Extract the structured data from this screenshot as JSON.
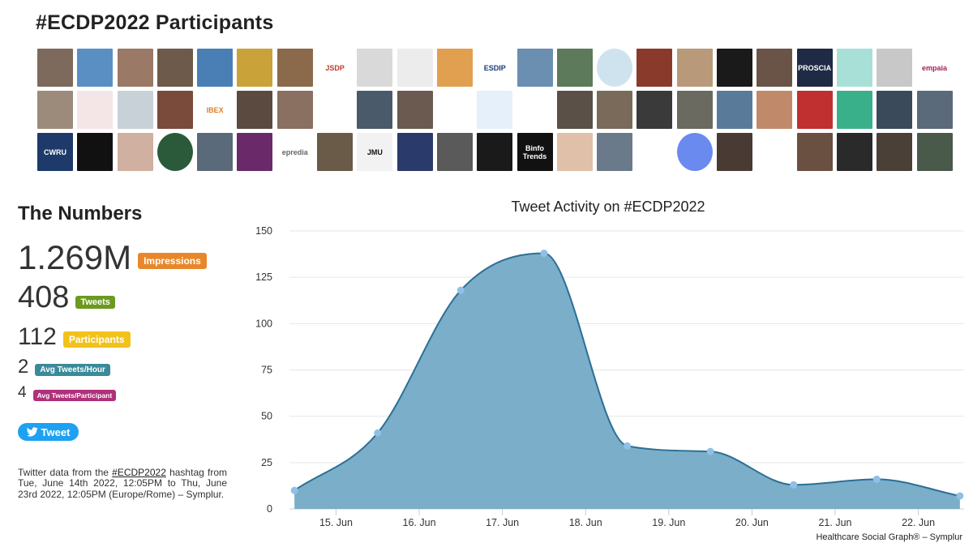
{
  "header": {
    "title": "#ECDP2022 Participants"
  },
  "avatars": [
    {
      "bg": "#7d6a5c"
    },
    {
      "bg": "#5a8fc4"
    },
    {
      "bg": "#9a7a66"
    },
    {
      "bg": "#6e5a4a"
    },
    {
      "bg": "#4a7fb5"
    },
    {
      "bg": "#c9a23a"
    },
    {
      "bg": "#8a6a4a"
    },
    {
      "bg": "#ffffff",
      "text": "JSDP",
      "color": "#c0392b"
    },
    {
      "bg": "#d9d9d9"
    },
    {
      "bg": "#ececec"
    },
    {
      "bg": "#e0a050"
    },
    {
      "bg": "#ffffff",
      "text": "ESDIP",
      "color": "#1d3a7a"
    },
    {
      "bg": "#6a8fb0"
    },
    {
      "bg": "#5d7a5a"
    },
    {
      "bg": "#cfe3ef",
      "circle": true
    },
    {
      "bg": "#8a3a2a"
    },
    {
      "bg": "#b89a7a"
    },
    {
      "bg": "#1a1a1a"
    },
    {
      "bg": "#6a5448"
    },
    {
      "bg": "#1f2a44",
      "text": "PROSCIA",
      "color": "#ffffff"
    },
    {
      "bg": "#a8e0d8"
    },
    {
      "bg": "#c8c8c8"
    },
    {
      "bg": "#ffffff",
      "text": "empaia",
      "color": "#a0205a"
    },
    {
      "bg": "#9c8a7a"
    },
    {
      "bg": "#f4e6e6"
    },
    {
      "bg": "#c8d0d8"
    },
    {
      "bg": "#7a4a3a"
    },
    {
      "bg": "#ffffff",
      "text": "IBEX",
      "color": "#e08020"
    },
    {
      "bg": "#5a4a40"
    },
    {
      "bg": "#8a7060"
    },
    {
      "bg": "#ffffff"
    },
    {
      "bg": "#4a5a6a"
    },
    {
      "bg": "#6a5a50"
    },
    {
      "bg": "#ffffff"
    },
    {
      "bg": "#e6f0fa"
    },
    {
      "bg": "#ffffff"
    },
    {
      "bg": "#5a5048"
    },
    {
      "bg": "#7a6a5a"
    },
    {
      "bg": "#3a3a3a"
    },
    {
      "bg": "#6a6a60"
    },
    {
      "bg": "#5a7a9a"
    },
    {
      "bg": "#c08a6a"
    },
    {
      "bg": "#c03030"
    },
    {
      "bg": "#3ab08a"
    },
    {
      "bg": "#3a4a5a"
    },
    {
      "bg": "#5a6a7a"
    },
    {
      "bg": "#1d3a6a",
      "text": "CWRU",
      "color": "#ffffff"
    },
    {
      "bg": "#111111"
    },
    {
      "bg": "#d0b0a0"
    },
    {
      "bg": "#2a5a3a",
      "circle": true
    },
    {
      "bg": "#5a6a7a"
    },
    {
      "bg": "#6a2a6a"
    },
    {
      "bg": "#ffffff",
      "text": "epredia",
      "color": "#666666"
    },
    {
      "bg": "#6a5a48"
    },
    {
      "bg": "#f2f2f2",
      "text": "JMU",
      "color": "#111111"
    },
    {
      "bg": "#2a3a6a"
    },
    {
      "bg": "#5a5a5a"
    },
    {
      "bg": "#1a1a1a"
    },
    {
      "bg": "#111111",
      "text": "Binfo\nTrends",
      "color": "#ffffff"
    },
    {
      "bg": "#e0c0a8"
    },
    {
      "bg": "#6a7a8a"
    },
    {
      "bg": "#ffffff"
    },
    {
      "bg": "#6a8af0",
      "circle": true
    },
    {
      "bg": "#4a3a34"
    },
    {
      "bg": "#ffffff",
      "circle": true
    },
    {
      "bg": "#6a5040"
    },
    {
      "bg": "#2a2a2a"
    },
    {
      "bg": "#4a4038"
    },
    {
      "bg": "#4a5a4a"
    }
  ],
  "numbers": {
    "title": "The Numbers",
    "impressions": {
      "value": "1.269M",
      "label": "Impressions",
      "color": "#e8872a"
    },
    "tweets": {
      "value": "408",
      "label": "Tweets",
      "color": "#6a9a1f"
    },
    "participants": {
      "value": "112",
      "label": "Participants",
      "color": "#f2c21b"
    },
    "avg_tweets_hour": {
      "value": "2",
      "label": "Avg Tweets/Hour",
      "color": "#3a8a9a"
    },
    "avg_tweets_participant": {
      "value": "4",
      "label": "Avg Tweets/Participant",
      "color": "#b0307a"
    }
  },
  "tweet_button": {
    "label": "Tweet"
  },
  "description": {
    "before": "Twitter data from the ",
    "hashtag": "#ECDP2022",
    "after": " hashtag from Tue, June 14th 2022, 12:05PM to Thu, June 23rd 2022, 12:05PM (Europe/Rome) – Symplur."
  },
  "chart_data": {
    "type": "area",
    "title": "Tweet Activity on #ECDP2022",
    "x": [
      14.5,
      15.5,
      16.5,
      17.5,
      18.5,
      19.5,
      20.5,
      21.5,
      22.5
    ],
    "values": [
      10,
      41,
      118,
      138,
      34,
      31,
      13,
      16,
      7
    ],
    "x_tick_labels": [
      "15. Jun",
      "16. Jun",
      "17. Jun",
      "18. Jun",
      "19. Jun",
      "20. Jun",
      "21. Jun",
      "22. Jun"
    ],
    "x_ticks": [
      15,
      16,
      17,
      18,
      19,
      20,
      21,
      22
    ],
    "y_ticks": [
      0,
      25,
      50,
      75,
      100,
      125,
      150
    ],
    "ylim": [
      0,
      150
    ],
    "xlim": [
      14.44,
      22.55
    ],
    "grid": true,
    "fill_color": "#7aaec9",
    "line_color": "#2c6f95",
    "point_color": "#8fc0e8",
    "credit": "Healthcare Social Graph® – Symplur"
  }
}
